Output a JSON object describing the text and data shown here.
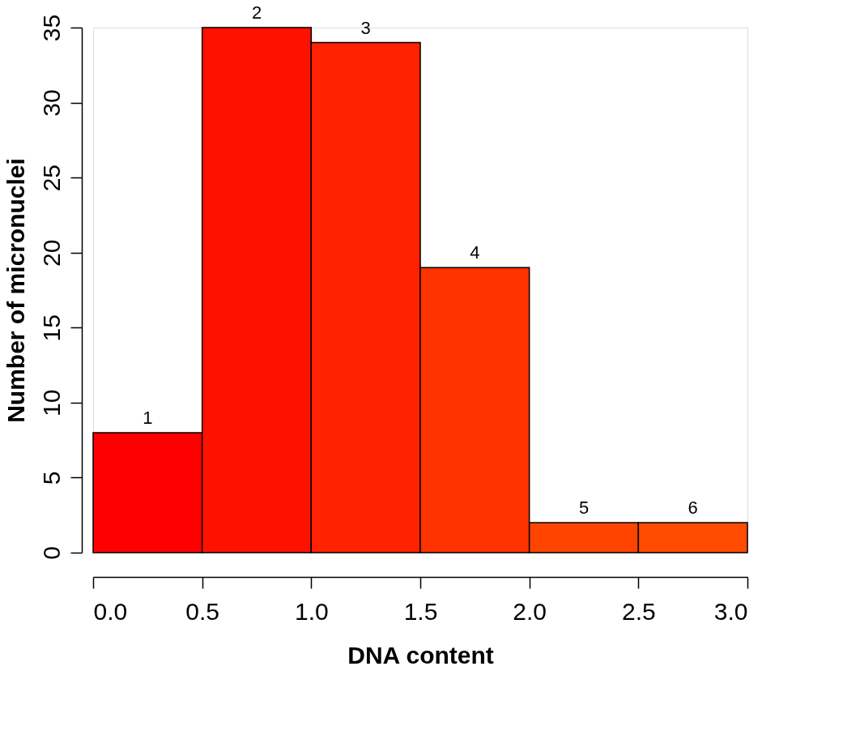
{
  "chart_data": {
    "type": "histogram",
    "xlabel": "DNA content",
    "ylabel": "Number of micronuclei",
    "bins": [
      0.0,
      0.5,
      1.0,
      1.5,
      2.0,
      2.5,
      3.0
    ],
    "values": [
      8,
      35,
      34,
      19,
      2,
      2
    ],
    "colors": [
      "#ff0000",
      "#ff1100",
      "#ff2200",
      "#ff3300",
      "#ff4400",
      "#ff4c00"
    ],
    "xlim": [
      0,
      3
    ],
    "xticks": [
      {
        "value": 0,
        "label": "0.0"
      },
      0.5,
      {
        "value": 1,
        "label": "1.0"
      },
      1.5,
      {
        "value": 2,
        "label": "2.0"
      },
      2.5,
      {
        "value": 3,
        "label": "3.0"
      }
    ],
    "ylim": [
      0,
      35
    ],
    "yticks": [
      0,
      5,
      10,
      15,
      20,
      25,
      30,
      35
    ],
    "grid": false,
    "annotations": [
      {
        "text": "1",
        "x": 0.25,
        "y": 8
      },
      {
        "text": "2",
        "x": 0.75,
        "y": 35
      },
      {
        "text": "3",
        "x": 1.25,
        "y": 34
      },
      {
        "text": "4",
        "x": 1.75,
        "y": 19
      },
      {
        "text": "5",
        "x": 2.25,
        "y": 2
      },
      {
        "text": "6",
        "x": 2.75,
        "y": 2
      }
    ]
  }
}
